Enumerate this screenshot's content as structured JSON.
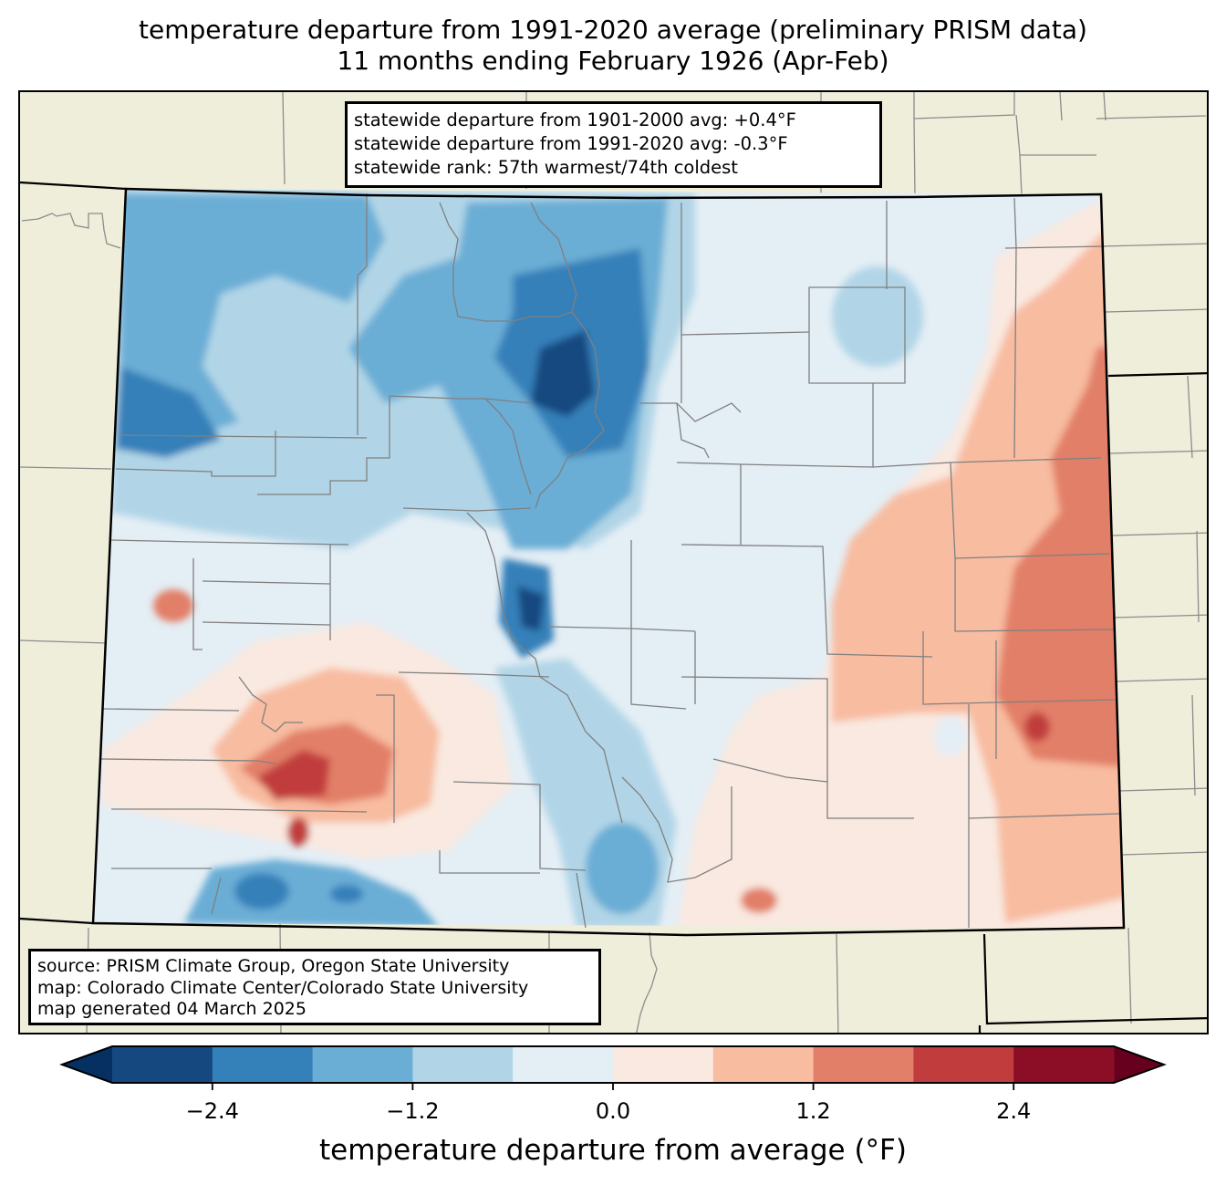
{
  "header": {
    "title_line1": "temperature departure from 1991-2020 average (preliminary PRISM data)",
    "title_line2": "11 months ending February 1926 (Apr-Feb)"
  },
  "stats": {
    "line1": "statewide departure from 1901-2000 avg: +0.4°F",
    "line2": "statewide departure from 1991-2020 avg: -0.3°F",
    "line3": "statewide rank: 57th warmest/74th coldest"
  },
  "credits": {
    "line1": "source: PRISM Climate Group, Oregon State University",
    "line2": "map: Colorado Climate Center/Colorado State University",
    "line3": "map generated 04 March 2025"
  },
  "map": {
    "region": "Colorado",
    "background_color": "#efeedb",
    "state_border_color": "#000000",
    "county_border_color": "#808080",
    "regional_pattern": {
      "northwest_and_central_mountains": "cool (-0.6 to -3.0 °F), darkest near north-central mountains",
      "eastern_plains": "warm (0 to +2.4 °F), warmest along eastern border",
      "san_juan_southwest": "warm core (+1.8 to +3.0 °F) with cool pockets along southern border"
    }
  },
  "colorbar": {
    "label": "temperature departure from average (°F)",
    "boundaries": [
      -3.0,
      -2.4,
      -1.8,
      -1.2,
      -0.6,
      0.0,
      0.6,
      1.2,
      1.8,
      2.4,
      3.0
    ],
    "colors": [
      "#164880",
      "#3480b9",
      "#6aadd5",
      "#b1d5e7",
      "#e4eef5",
      "#f9e9e0",
      "#f8bca0",
      "#e27f68",
      "#c13d3d",
      "#8b0e26"
    ],
    "extend_low_color": "#053061",
    "extend_high_color": "#67001f",
    "ticks": [
      {
        "value": -2.4,
        "label": "−2.4"
      },
      {
        "value": -1.2,
        "label": "−1.2"
      },
      {
        "value": 0.0,
        "label": "0.0"
      },
      {
        "value": 1.2,
        "label": "1.2"
      },
      {
        "value": 2.4,
        "label": "2.4"
      }
    ]
  }
}
